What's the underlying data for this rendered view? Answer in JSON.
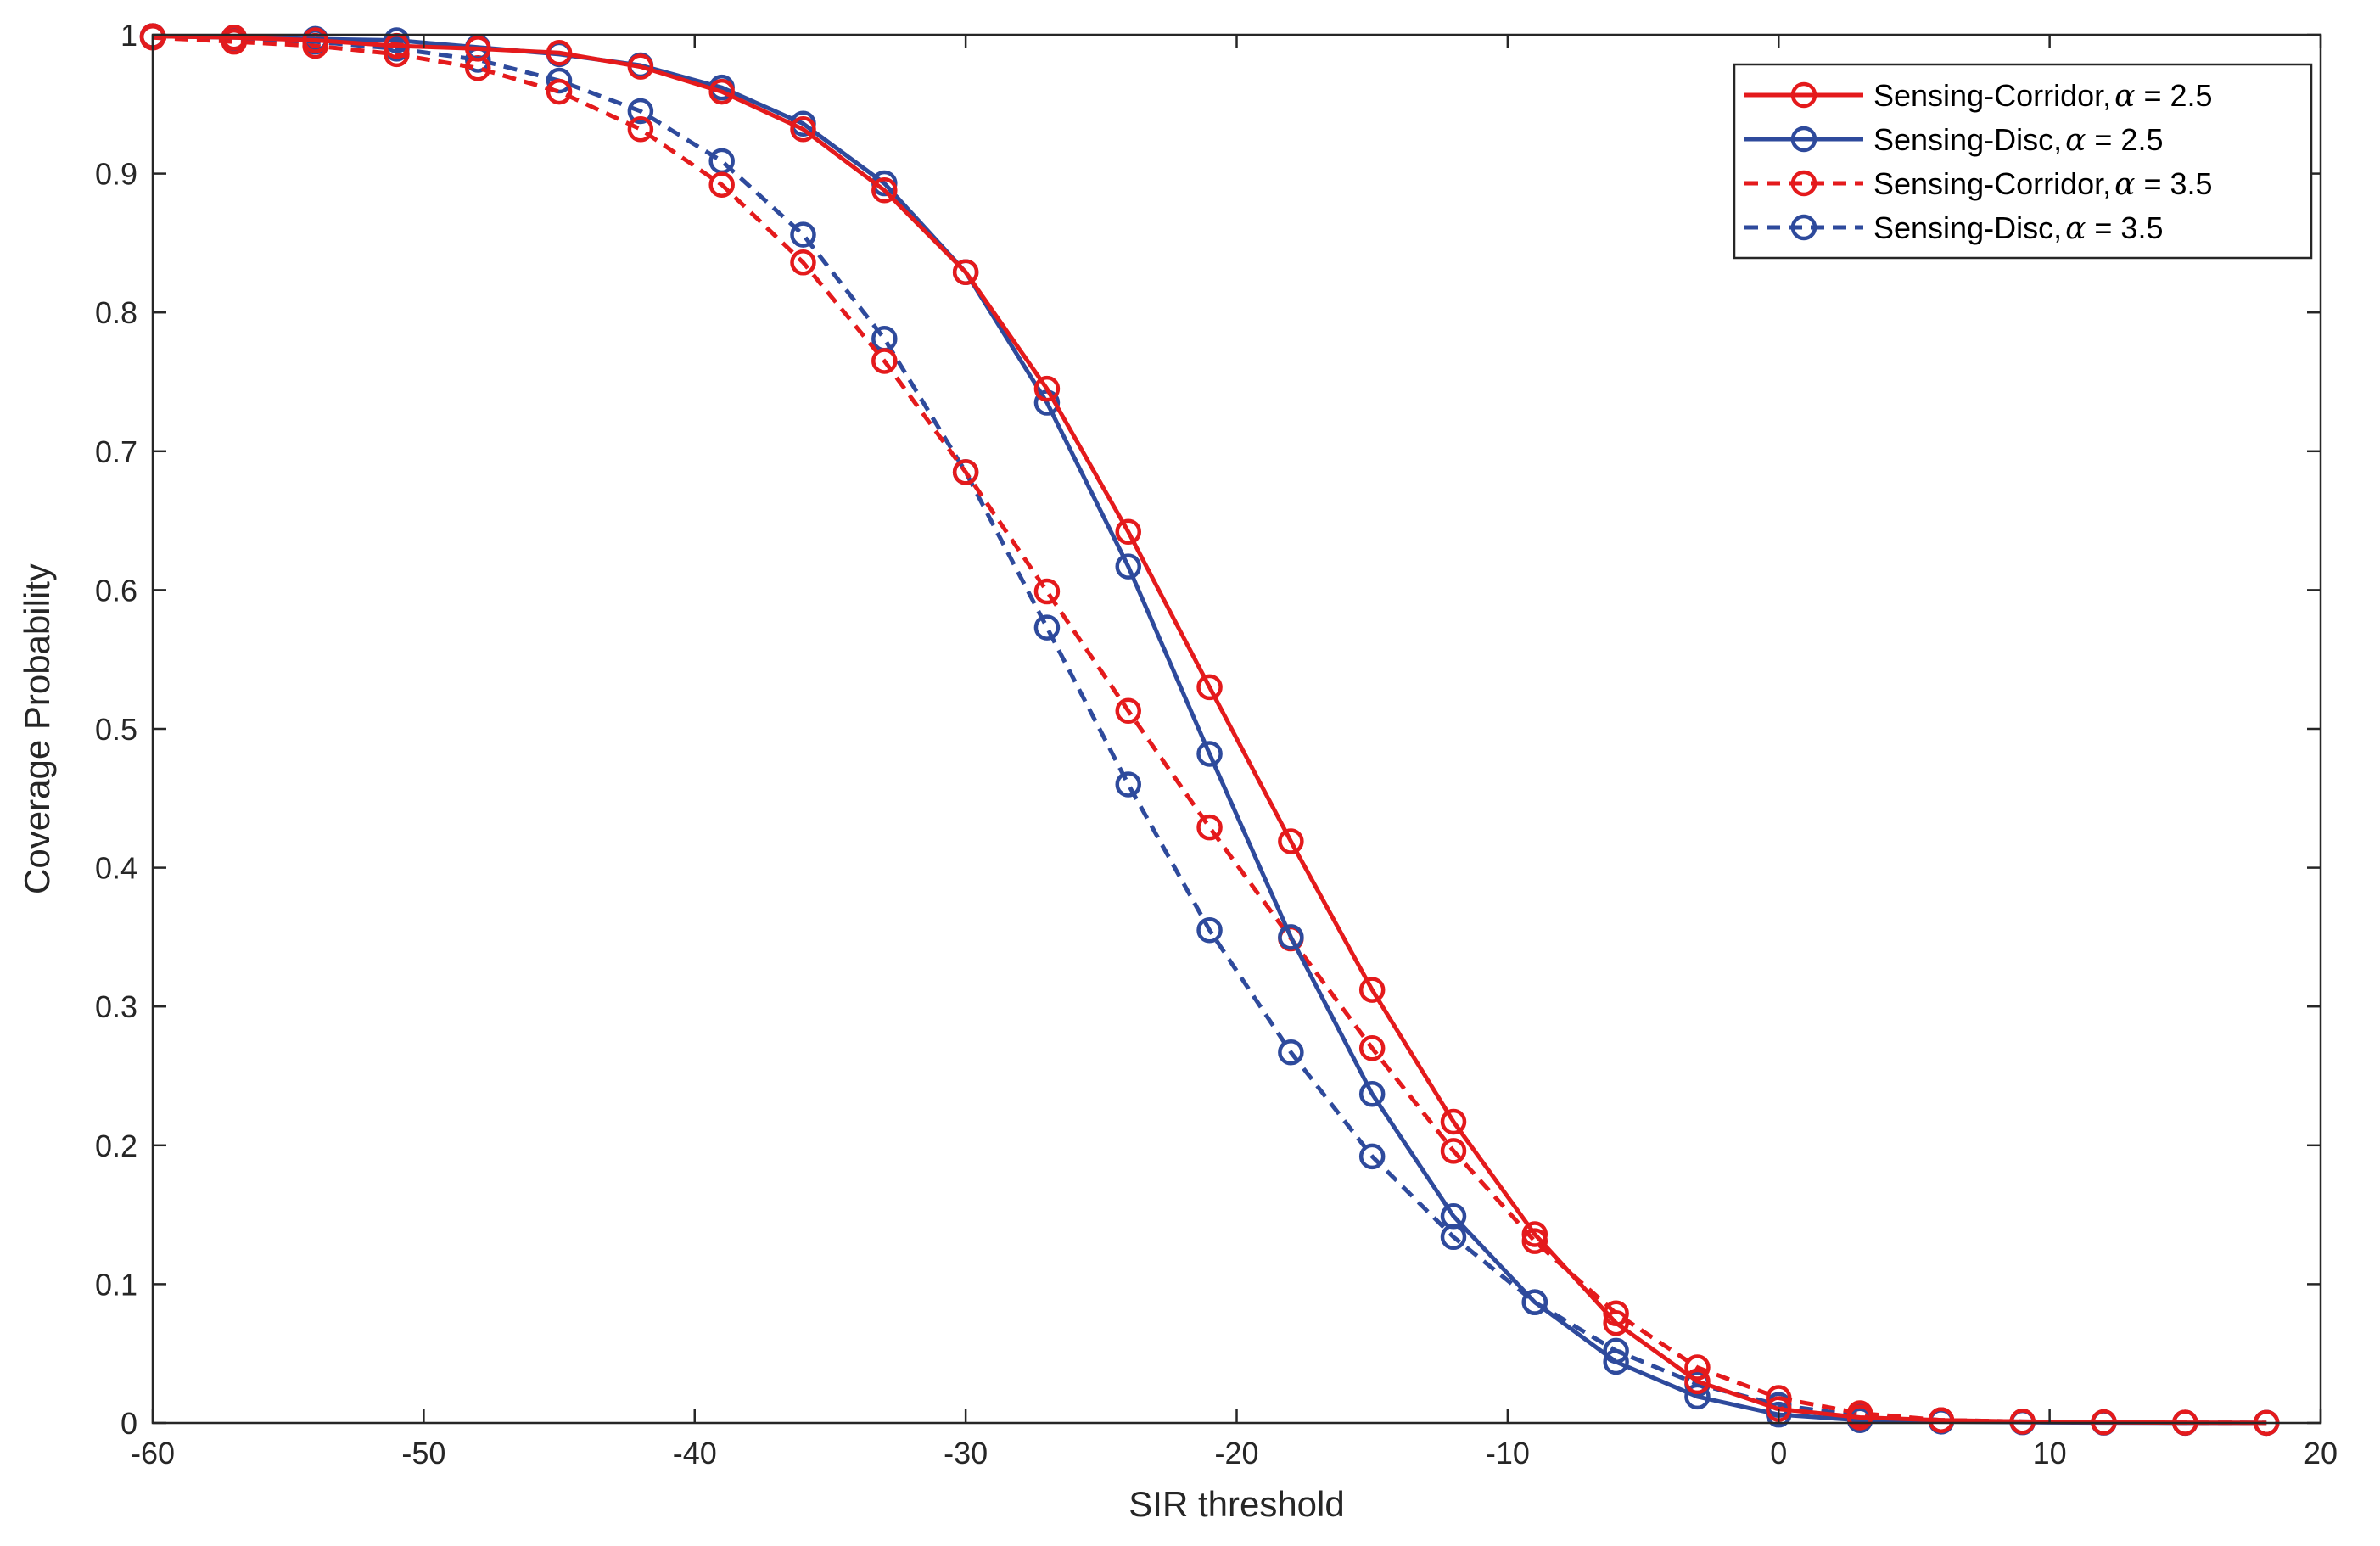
{
  "chart_data": {
    "type": "line",
    "title": "",
    "xlabel": "SIR threshold",
    "ylabel": "Coverage Probability",
    "xlim": [
      -60,
      20
    ],
    "ylim": [
      0,
      1
    ],
    "xticks": [
      -60,
      -50,
      -40,
      -30,
      -20,
      -10,
      0,
      10,
      20
    ],
    "yticks": [
      0,
      0.1,
      0.2,
      0.3,
      0.4,
      0.5,
      0.6,
      0.7,
      0.8,
      0.9,
      1
    ],
    "xtick_labels": [
      "-60",
      "-50",
      "-40",
      "-30",
      "-20",
      "-10",
      "0",
      "10",
      "20"
    ],
    "ytick_labels": [
      "0",
      "0.1",
      "0.2",
      "0.3",
      "0.4",
      "0.5",
      "0.6",
      "0.7",
      "0.8",
      "0.9",
      "1"
    ],
    "grid": false,
    "legend_position": "top-right",
    "x": [
      -60,
      -57,
      -54,
      -51,
      -48,
      -45,
      -42,
      -39,
      -36,
      -33,
      -30,
      -27,
      -24,
      -21,
      -18,
      -15,
      -12,
      -9,
      -6,
      -3,
      0,
      3,
      6,
      9,
      12,
      15,
      18
    ],
    "series": [
      {
        "name": "Sensing-Corridor, α = 2.5",
        "legend_prefix": "Sensing-Corridor,",
        "legend_symbol": "α",
        "legend_suffix": " = 2.5",
        "color": "#e41a1c",
        "dash": "solid",
        "values": [
          0.999,
          0.998,
          0.996,
          0.992,
          0.99,
          0.987,
          0.977,
          0.959,
          0.932,
          0.888,
          0.829,
          0.745,
          0.642,
          0.53,
          0.419,
          0.312,
          0.217,
          0.136,
          0.072,
          0.03,
          0.01,
          0.004,
          0.002,
          0.001,
          0.0005,
          0.0002,
          0.0001
        ]
      },
      {
        "name": "Sensing-Disc, α = 2.5",
        "legend_prefix": "Sensing-Disc,",
        "legend_symbol": "α",
        "legend_suffix": " = 2.5",
        "color": "#2e4a9c",
        "dash": "solid",
        "values": [
          0.999,
          0.998,
          0.997,
          0.996,
          0.991,
          0.986,
          0.978,
          0.962,
          0.936,
          0.893,
          0.829,
          0.735,
          0.617,
          0.482,
          0.35,
          0.237,
          0.149,
          0.087,
          0.044,
          0.019,
          0.006,
          0.002,
          0.001,
          0.0005,
          0.0002,
          0.0001,
          0.0001
        ]
      },
      {
        "name": "Sensing-Corridor, α = 3.5",
        "legend_prefix": "Sensing-Corridor,",
        "legend_symbol": "α",
        "legend_suffix": " = 3.5",
        "color": "#e41a1c",
        "dash": "dashed",
        "values": [
          0.998,
          0.995,
          0.992,
          0.986,
          0.976,
          0.959,
          0.932,
          0.892,
          0.836,
          0.765,
          0.685,
          0.599,
          0.513,
          0.429,
          0.349,
          0.27,
          0.196,
          0.131,
          0.079,
          0.04,
          0.018,
          0.007,
          0.002,
          0.001,
          0.0005,
          0.0002,
          0.0001
        ]
      },
      {
        "name": "Sensing-Disc, α = 3.5",
        "legend_prefix": "Sensing-Disc,",
        "legend_symbol": "α",
        "legend_suffix": " = 3.5",
        "color": "#2e4a9c",
        "dash": "dashed",
        "values": [
          0.999,
          0.997,
          0.995,
          0.99,
          0.982,
          0.967,
          0.945,
          0.909,
          0.856,
          0.781,
          0.685,
          0.573,
          0.46,
          0.355,
          0.267,
          0.192,
          0.134,
          0.087,
          0.052,
          0.028,
          0.013,
          0.005,
          0.002,
          0.001,
          0.0005,
          0.0002,
          0.0001
        ]
      }
    ]
  }
}
